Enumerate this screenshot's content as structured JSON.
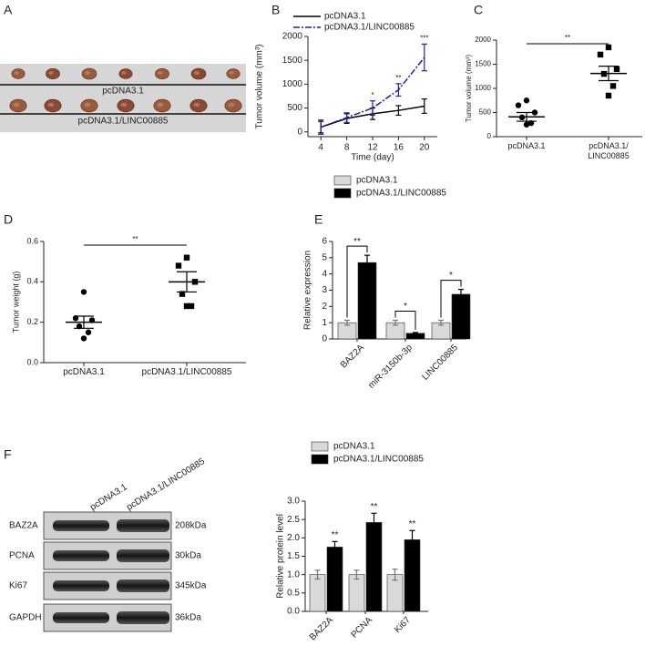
{
  "panel_a": {
    "label": "A",
    "groups": [
      "pcDNA3.1",
      "pcDNA3.1/LINC00885"
    ]
  },
  "panel_f_blot": {
    "label": "F",
    "lanes": [
      "pcDNA3.1",
      "pcDNA3.1/LINC00885"
    ],
    "rows": [
      {
        "protein": "BAZ2A",
        "size": "208kDa"
      },
      {
        "protein": "PCNA",
        "size": "30kDa"
      },
      {
        "protein": "Ki67",
        "size": "345kDa"
      },
      {
        "protein": "GAPDH",
        "size": "36kDa"
      }
    ]
  },
  "chart_data": [
    {
      "panel": "B",
      "type": "line",
      "ylabel": "Tumor volume (mm³)",
      "xlabel": "Time (day)",
      "x": [
        4,
        8,
        12,
        16,
        20
      ],
      "xlim": [
        2,
        22
      ],
      "xticks": [
        4,
        8,
        12,
        16,
        20
      ],
      "ylim": [
        -100,
        2000
      ],
      "yticks": [
        0,
        500,
        1000,
        1500,
        2000
      ],
      "series": [
        {
          "name": "pcDNA3.1",
          "color": "#000000",
          "dash": "solid",
          "values": [
            100,
            280,
            380,
            450,
            540
          ],
          "errors": [
            120,
            100,
            120,
            100,
            150
          ]
        },
        {
          "name": "pcDNA3.1/LINC00885",
          "color": "#1f1fa8",
          "dash": "dash-dot",
          "values": [
            100,
            300,
            500,
            880,
            1560
          ],
          "errors": [
            150,
            100,
            150,
            130,
            280
          ]
        }
      ],
      "annotations": [
        null,
        null,
        "*",
        "**",
        "***"
      ]
    },
    {
      "panel": "C",
      "type": "dot",
      "ylabel": "Tumor volume (mm³)",
      "categories": [
        "pcDNA3.1",
        "pcDNA3.1/\nLINC00885"
      ],
      "ylim": [
        0,
        2000
      ],
      "yticks": [
        0,
        500,
        1000,
        1500,
        2000
      ],
      "points": [
        [
          750,
          650,
          500,
          400,
          280,
          250
        ],
        [
          1850,
          1700,
          1400,
          1300,
          1050,
          850
        ]
      ],
      "means": [
        410,
        1310
      ],
      "sems": [
        90,
        150
      ],
      "significance": "**"
    },
    {
      "panel": "D",
      "type": "dot",
      "ylabel": "Tumor weight (g)",
      "categories": [
        "pcDNA3.1",
        "pcDNA3.1/LINC00885"
      ],
      "ylim": [
        0,
        0.6
      ],
      "yticks": [
        {
          "value": 0,
          "label": "0.0"
        },
        0.2,
        0.4,
        0.6
      ],
      "points": [
        [
          0.35,
          0.22,
          0.21,
          0.18,
          0.15,
          0.12
        ],
        [
          0.52,
          0.48,
          0.4,
          0.34,
          0.28,
          0.28
        ]
      ],
      "means": [
        0.2,
        0.4
      ],
      "sems": [
        0.03,
        0.05
      ],
      "significance": "**"
    },
    {
      "panel": "E",
      "type": "bar",
      "ylabel": "Relative expression",
      "categories": [
        "BAZ2A",
        "miR-3150b-3p",
        "LINC00885"
      ],
      "ylim": [
        0,
        6
      ],
      "yticks": [
        0,
        1,
        2,
        3,
        4,
        5,
        6
      ],
      "brackets": true,
      "series": [
        {
          "name": "pcDNA3.1",
          "color": "#d9d9d9",
          "values": [
            1,
            1,
            1
          ],
          "errors": [
            0.15,
            0.15,
            0.15
          ]
        },
        {
          "name": "pcDNA3.1/LINC00885",
          "color": "#000000",
          "values": [
            4.7,
            0.35,
            2.75
          ],
          "errors": [
            0.45,
            0.05,
            0.3
          ]
        }
      ],
      "annotations": [
        "**",
        "*",
        "*"
      ]
    },
    {
      "type": "bar",
      "ylabel": "Relative protein level",
      "categories": [
        "BAZ2A",
        "PCNA",
        "Ki67"
      ],
      "ylim": [
        0,
        3
      ],
      "yticks": [
        {
          "value": 0,
          "label": "0.0"
        },
        0.5,
        {
          "value": 1,
          "label": "1.0"
        },
        1.5,
        {
          "value": 2,
          "label": "2.0"
        },
        2.5,
        {
          "value": 3,
          "label": "3.0"
        }
      ],
      "brackets": false,
      "series": [
        {
          "name": "pcDNA3.1",
          "color": "#d9d9d9",
          "values": [
            1,
            1,
            1
          ],
          "errors": [
            0.12,
            0.12,
            0.15
          ]
        },
        {
          "name": "pcDNA3.1/LINC00885",
          "color": "#000000",
          "values": [
            1.75,
            2.42,
            1.95
          ],
          "errors": [
            0.15,
            0.25,
            0.25
          ]
        }
      ],
      "annotations": [
        "**",
        "**",
        "**"
      ]
    }
  ]
}
